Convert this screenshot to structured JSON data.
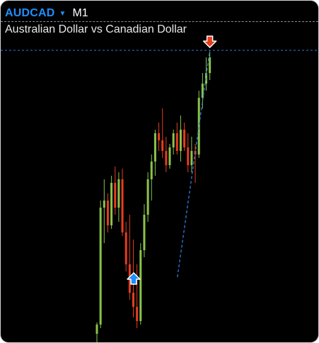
{
  "header": {
    "symbol": "AUDCAD",
    "dropdown_icon": "chevron-down-icon",
    "timeframe": "M1",
    "description": "Australian Dollar vs Canadian Dollar"
  },
  "colors": {
    "background": "#000000",
    "symbol": "#1f8fff",
    "bull_candle": "#8bc34a",
    "bear_candle": "#e53e1e",
    "trend_line": "#2f7dd9",
    "price_line": "#2f7dd9",
    "buy_arrow": "#1e8fff",
    "sell_arrow": "#e53e1e"
  },
  "chart_data": {
    "type": "candlestick",
    "ylim": [
      0,
      480
    ],
    "candles": [
      {
        "o": 12,
        "h": 28,
        "l": 0,
        "c": 25
      },
      {
        "o": 25,
        "h": 200,
        "l": 20,
        "c": 190
      },
      {
        "o": 190,
        "h": 230,
        "l": 140,
        "c": 200
      },
      {
        "o": 200,
        "h": 210,
        "l": 155,
        "c": 165
      },
      {
        "o": 165,
        "h": 235,
        "l": 160,
        "c": 225
      },
      {
        "o": 225,
        "h": 248,
        "l": 180,
        "c": 190
      },
      {
        "o": 190,
        "h": 240,
        "l": 170,
        "c": 230
      },
      {
        "o": 230,
        "h": 245,
        "l": 150,
        "c": 155
      },
      {
        "o": 155,
        "h": 170,
        "l": 100,
        "c": 110
      },
      {
        "o": 110,
        "h": 180,
        "l": 60,
        "c": 70
      },
      {
        "o": 70,
        "h": 145,
        "l": 35,
        "c": 50
      },
      {
        "o": 50,
        "h": 110,
        "l": 20,
        "c": 30
      },
      {
        "o": 30,
        "h": 140,
        "l": 25,
        "c": 130
      },
      {
        "o": 130,
        "h": 195,
        "l": 120,
        "c": 180
      },
      {
        "o": 180,
        "h": 240,
        "l": 170,
        "c": 230
      },
      {
        "o": 230,
        "h": 265,
        "l": 200,
        "c": 255
      },
      {
        "o": 255,
        "h": 300,
        "l": 235,
        "c": 295
      },
      {
        "o": 295,
        "h": 310,
        "l": 270,
        "c": 285
      },
      {
        "o": 285,
        "h": 330,
        "l": 260,
        "c": 270
      },
      {
        "o": 270,
        "h": 290,
        "l": 240,
        "c": 250
      },
      {
        "o": 250,
        "h": 280,
        "l": 245,
        "c": 275
      },
      {
        "o": 275,
        "h": 300,
        "l": 265,
        "c": 295
      },
      {
        "o": 295,
        "h": 310,
        "l": 265,
        "c": 270
      },
      {
        "o": 270,
        "h": 320,
        "l": 255,
        "c": 300
      },
      {
        "o": 300,
        "h": 310,
        "l": 270,
        "c": 275
      },
      {
        "o": 275,
        "h": 295,
        "l": 240,
        "c": 250
      },
      {
        "o": 250,
        "h": 290,
        "l": 240,
        "c": 270
      },
      {
        "o": 270,
        "h": 280,
        "l": 225,
        "c": 265
      },
      {
        "o": 265,
        "h": 355,
        "l": 260,
        "c": 345
      },
      {
        "o": 345,
        "h": 380,
        "l": 330,
        "c": 365
      },
      {
        "o": 365,
        "h": 402,
        "l": 355,
        "c": 380
      },
      {
        "o": 380,
        "h": 410,
        "l": 370,
        "c": 402
      }
    ],
    "trend_line": {
      "from_index": 12,
      "from_value": 92,
      "to_index": 31,
      "to_value": 412
    },
    "price_line_value": 412,
    "buy_signal": {
      "index": 12,
      "value": 92
    },
    "sell_signal": {
      "index": 31,
      "value": 412
    }
  }
}
